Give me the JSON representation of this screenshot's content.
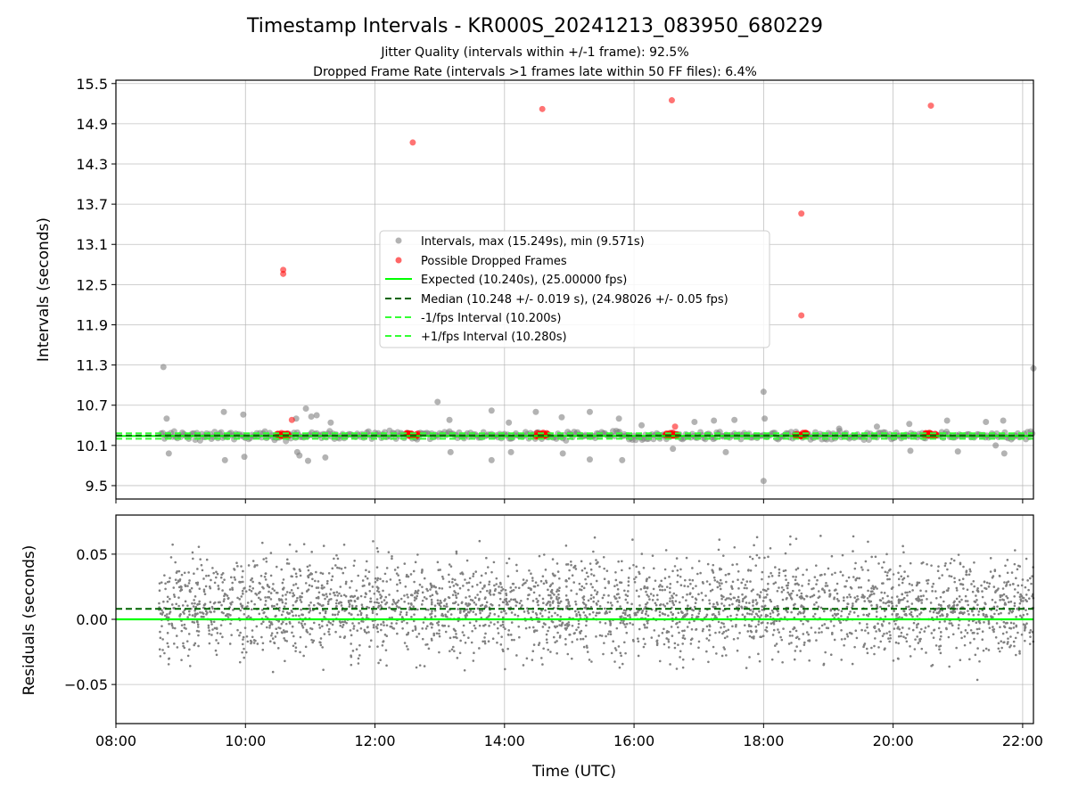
{
  "figure": {
    "title": "Timestamp Intervals - KR000S_20241213_083950_680229",
    "subtitle_1": "Jitter Quality (intervals within +/-1 frame): 92.5%",
    "subtitle_2": "Dropped Frame Rate (intervals >1 frames late within 50 FF files): 6.4%",
    "xlabel": "Time (UTC)"
  },
  "chart_data": [
    {
      "type": "scatter",
      "panel": "intervals",
      "ylabel": "Intervals (seconds)",
      "xlim": [
        "08:00",
        "22:10"
      ],
      "ylim": [
        9.3,
        15.55
      ],
      "x_ticks": [
        "08:00",
        "10:00",
        "12:00",
        "14:00",
        "16:00",
        "18:00",
        "20:00",
        "22:00"
      ],
      "y_ticks": [
        "9.5",
        "10.1",
        "10.7",
        "11.3",
        "11.9",
        "12.5",
        "13.1",
        "13.7",
        "14.3",
        "14.9",
        "15.5"
      ],
      "grid": true,
      "legend_position": "center",
      "legend": [
        "Intervals, max (15.249s), min (9.571s)",
        "Possible Dropped Frames",
        "Expected (10.240s), (25.00000 fps)",
        "Median (10.248 +/- 0.019 s), (24.98026 +/- 0.05 fps)",
        "-1/fps Interval (10.200s)",
        "+1/fps Interval (10.280s)"
      ],
      "series": [
        {
          "name": "Intervals, max (15.249s), min (9.571s)",
          "color": "#808080",
          "points": [
            [
              "08:44",
              11.27
            ],
            [
              "08:47",
              10.5
            ],
            [
              "08:49",
              9.98
            ],
            [
              "09:40",
              10.6
            ],
            [
              "09:41",
              9.88
            ],
            [
              "09:58",
              10.56
            ],
            [
              "09:59",
              9.93
            ],
            [
              "10:47",
              10.5
            ],
            [
              "10:48",
              10.0
            ],
            [
              "10:50",
              9.95
            ],
            [
              "10:56",
              10.65
            ],
            [
              "10:58",
              9.87
            ],
            [
              "11:01",
              10.53
            ],
            [
              "11:06",
              10.55
            ],
            [
              "11:14",
              9.92
            ],
            [
              "11:19",
              10.44
            ],
            [
              "12:58",
              10.75
            ],
            [
              "13:09",
              10.48
            ],
            [
              "13:10",
              10.0
            ],
            [
              "13:48",
              10.62
            ],
            [
              "13:48",
              9.88
            ],
            [
              "14:04",
              10.44
            ],
            [
              "14:06",
              10.0
            ],
            [
              "14:29",
              10.6
            ],
            [
              "14:53",
              10.52
            ],
            [
              "14:54",
              9.98
            ],
            [
              "15:19",
              10.6
            ],
            [
              "15:19",
              9.89
            ],
            [
              "15:46",
              10.5
            ],
            [
              "15:49",
              9.88
            ],
            [
              "16:07",
              10.4
            ],
            [
              "16:36",
              10.05
            ],
            [
              "16:56",
              10.45
            ],
            [
              "17:14",
              10.47
            ],
            [
              "17:25",
              10.0
            ],
            [
              "17:33",
              10.48
            ],
            [
              "18:00",
              10.9
            ],
            [
              "18:00",
              9.57
            ],
            [
              "18:01",
              10.5
            ],
            [
              "19:10",
              10.35
            ],
            [
              "19:45",
              10.38
            ],
            [
              "20:15",
              10.42
            ],
            [
              "20:16",
              10.02
            ],
            [
              "20:50",
              10.47
            ],
            [
              "21:00",
              10.01
            ],
            [
              "21:26",
              10.45
            ],
            [
              "21:35",
              10.1
            ],
            [
              "21:42",
              10.47
            ],
            [
              "21:43",
              9.98
            ],
            [
              "22:10",
              11.25
            ]
          ]
        },
        {
          "name": "Possible Dropped Frames",
          "color": "#ff0000",
          "points": [
            [
              "10:35",
              12.72
            ],
            [
              "10:35",
              12.66
            ],
            [
              "10:43",
              10.48
            ],
            [
              "12:35",
              14.62
            ],
            [
              "14:35",
              15.12
            ],
            [
              "16:35",
              15.25
            ],
            [
              "16:38",
              10.38
            ],
            [
              "18:35",
              13.56
            ],
            [
              "18:35",
              12.04
            ],
            [
              "20:35",
              15.17
            ]
          ]
        },
        {
          "name": "Expected (10.240s), (25.00000 fps)",
          "color": "#00ff00",
          "y": 10.24
        },
        {
          "name": "Median (10.248 +/- 0.019 s), (24.98026 +/- 0.05 fps)",
          "color": "#006400",
          "y": 10.248
        },
        {
          "name": "-1/fps Interval (10.200s)",
          "color": "#33ff33",
          "y": 10.2
        },
        {
          "name": "+1/fps Interval (10.280s)",
          "color": "#33ff33",
          "y": 10.28
        }
      ]
    },
    {
      "type": "scatter",
      "panel": "residuals",
      "ylabel": "Residuals (seconds)",
      "xlim": [
        "08:00",
        "22:10"
      ],
      "ylim": [
        -0.08,
        0.08
      ],
      "x_ticks": [
        "08:00",
        "10:00",
        "12:00",
        "14:00",
        "16:00",
        "18:00",
        "20:00",
        "22:00"
      ],
      "y_ticks": [
        "−0.05",
        "0.00",
        "0.05"
      ],
      "grid": true,
      "reference_lines": {
        "expected": 0.0,
        "median": 0.008
      },
      "residuals_summary": {
        "time_range": [
          "08:40",
          "22:10"
        ],
        "center": 0.01,
        "spread": 0.019,
        "point_color": "#808080"
      }
    }
  ]
}
